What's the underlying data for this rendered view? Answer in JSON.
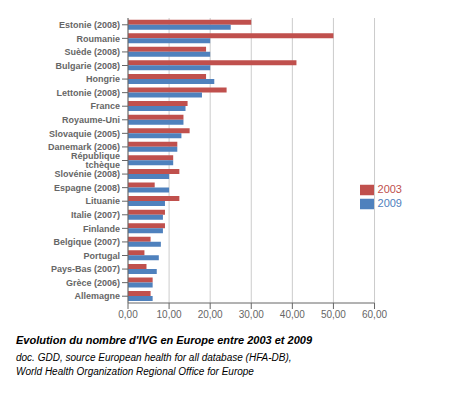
{
  "chart_data": {
    "type": "bar",
    "orientation": "horizontal",
    "title": "Evolution du nombre d'IVG en Europe entre 2003 et 2009",
    "subtitle": [
      "doc. GDD, source European health for all database (HFA-DB),",
      "World Health Organization Regional Office for Europe"
    ],
    "categories": [
      "Allemagne",
      "Grèce (2006)",
      "Pays-Bas (2007)",
      "Portugal",
      "Belgique (2007)",
      "Finlande",
      "Italie (2007)",
      "Lituanie",
      "Espagne (2008)",
      "Slovénie (2008)",
      "République tchèque",
      "Danemark (2006)",
      "Slovaquie (2005)",
      "Royaume-Uni",
      "France",
      "Lettonie (2008)",
      "Hongrie",
      "Bulgarie (2008)",
      "Suède (2008)",
      "Roumanie",
      "Estonie (2008)"
    ],
    "series": [
      {
        "name": "2003",
        "color": "#C0504D",
        "values": [
          5.5,
          6.0,
          4.5,
          4.0,
          5.5,
          9.0,
          9.0,
          12.5,
          6.5,
          12.5,
          11.0,
          12.0,
          15.0,
          13.5,
          14.5,
          24.0,
          19.0,
          41.0,
          19.0,
          50.0,
          30.0
        ]
      },
      {
        "name": "2009",
        "color": "#4F81BD",
        "values": [
          6.0,
          6.0,
          7.0,
          7.5,
          8.0,
          8.5,
          8.5,
          9.0,
          10.0,
          10.0,
          11.0,
          12.0,
          13.0,
          13.5,
          14.0,
          18.0,
          21.0,
          20.0,
          20.0,
          20.0,
          25.0
        ]
      }
    ],
    "xlim": [
      0,
      60
    ],
    "xticks": [
      {
        "value": 0,
        "label": "0,00"
      },
      {
        "value": 10,
        "label": "10,00"
      },
      {
        "value": 20,
        "label": "20,00"
      },
      {
        "value": 30,
        "label": "30,00"
      },
      {
        "value": 40,
        "label": "40,00"
      },
      {
        "value": 50,
        "label": "50,00"
      },
      {
        "value": 60,
        "label": "60,00"
      }
    ],
    "grid": true,
    "legend": "right"
  }
}
